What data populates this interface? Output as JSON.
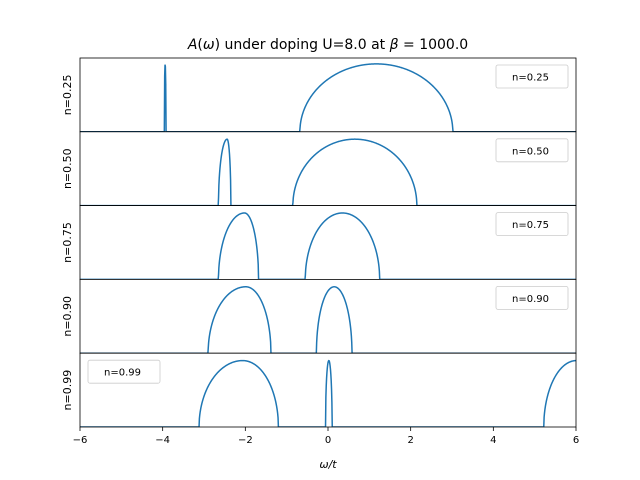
{
  "chart_data": {
    "type": "line",
    "title": "A(ω) under doping U=8.0 at β = 1000.0",
    "title_parts": {
      "a": "A",
      "w": "ω",
      "mid": " under doping U=8.0 at ",
      "beta": "β",
      "eq": " = 1000.0"
    },
    "xlabel": "ω/t",
    "xlabel_parts": {
      "w": "ω",
      "rest": "/t"
    },
    "xlim": [
      -6,
      6
    ],
    "xticks": [
      -6,
      -4,
      -2,
      0,
      2,
      4,
      6
    ],
    "xtick_labels": [
      "−6",
      "−4",
      "−2",
      "0",
      "2",
      "4",
      "6"
    ],
    "line_color": "#1f77b4",
    "panels": [
      {
        "ylabel": "n=0.25",
        "legend": "n=0.25",
        "legend_loc": "upper right",
        "bands": [
          {
            "lo": -3.96,
            "hi": -3.92,
            "peak": 0.92
          },
          {
            "lo": -0.68,
            "hi": 3.02,
            "peak": 0.92
          }
        ]
      },
      {
        "ylabel": "n=0.50",
        "legend": "n=0.50",
        "legend_loc": "upper right",
        "bands": [
          {
            "lo": -2.65,
            "hi": -2.35,
            "peak": 0.9,
            "skew": 0.7
          },
          {
            "lo": -0.85,
            "hi": 2.15,
            "peak": 0.9
          }
        ]
      },
      {
        "ylabel": "n=0.75",
        "legend": "n=0.75",
        "legend_loc": "upper right",
        "bands": [
          {
            "lo": -2.65,
            "hi": -1.68,
            "peak": 0.9,
            "skew": 0.65
          },
          {
            "lo": -0.55,
            "hi": 1.25,
            "peak": 0.9
          }
        ]
      },
      {
        "ylabel": "n=0.90",
        "legend": "n=0.90",
        "legend_loc": "upper right",
        "bands": [
          {
            "lo": -2.9,
            "hi": -1.38,
            "peak": 0.9,
            "skew": 0.6
          },
          {
            "lo": -0.28,
            "hi": 0.58,
            "peak": 0.9
          }
        ]
      },
      {
        "ylabel": "n=0.99",
        "legend": "n=0.99",
        "legend_loc": "upper left",
        "bands": [
          {
            "lo": -3.12,
            "hi": -1.2,
            "peak": 0.9,
            "skew": 0.55
          },
          {
            "lo": -0.06,
            "hi": 0.1,
            "peak": 0.9
          },
          {
            "lo": 5.22,
            "hi": 6.8,
            "peak": 0.9
          }
        ]
      }
    ]
  }
}
